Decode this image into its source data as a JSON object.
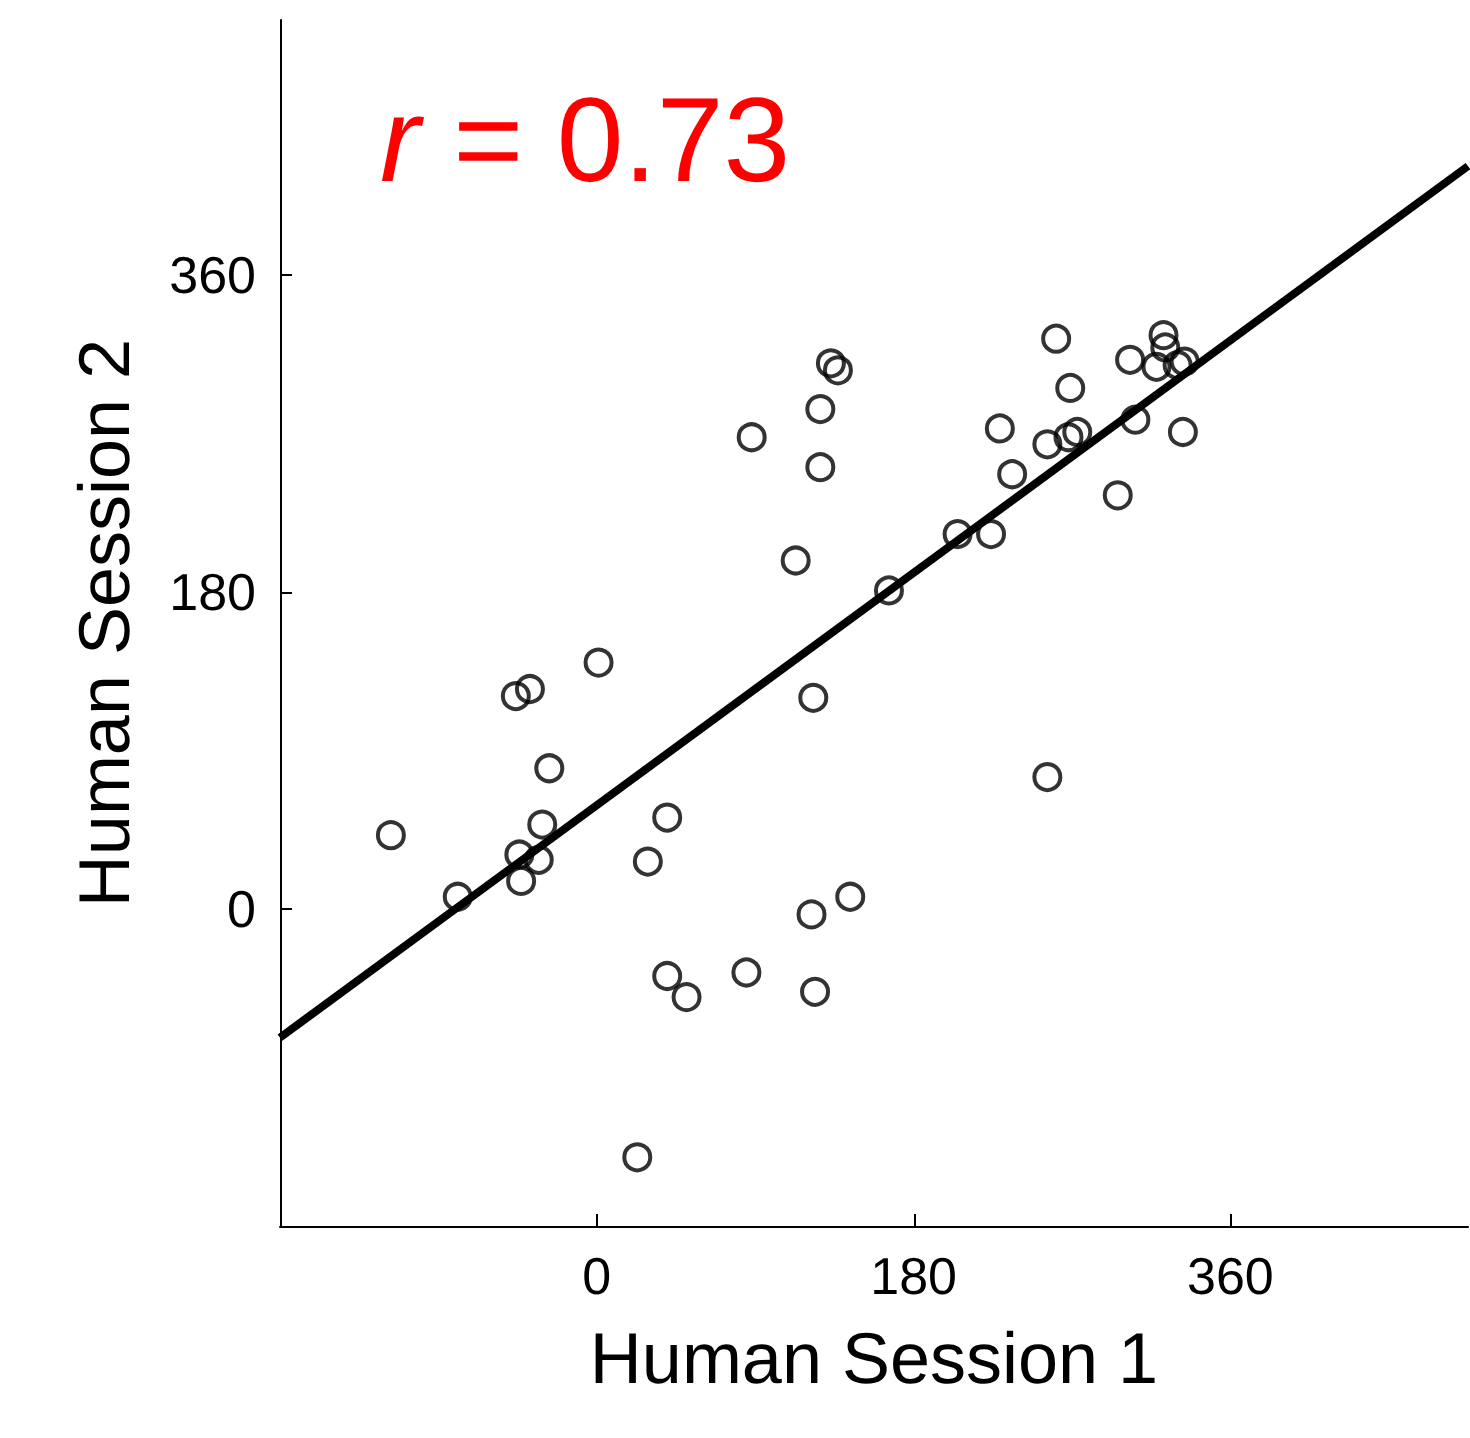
{
  "chart_data": {
    "type": "scatter",
    "xlabel": "Human Session 1",
    "ylabel": "Human Session 2",
    "annotations": [
      "r = 0.73"
    ],
    "xlim": [
      -180,
      495
    ],
    "ylim": [
      -180,
      505
    ],
    "xticks": [
      0,
      180,
      360
    ],
    "yticks": [
      0,
      180,
      360
    ],
    "grid": false,
    "marker": "circle",
    "series": [
      {
        "color": "#000000",
        "x": [
          -117,
          -79,
          -46,
          -38,
          -27,
          -31,
          -44,
          -33,
          -43,
          1,
          40,
          29,
          40,
          51,
          23,
          85,
          88,
          113,
          123,
          127,
          127,
          133,
          137,
          122,
          124,
          144,
          166,
          205,
          224,
          229,
          236,
          256,
          256,
          261,
          268,
          269,
          273,
          296,
          303,
          306,
          322,
          323,
          318,
          330,
          334,
          333
        ],
        "values": [
          42,
          7,
          121,
          125,
          80,
          48,
          31,
          28,
          16,
          140,
          52,
          27,
          -38,
          -50,
          -141,
          -36,
          268,
          198,
          120,
          251,
          284,
          310,
          306,
          -3,
          -47,
          7,
          181,
          213,
          213,
          273,
          247,
          75,
          264,
          324,
          268,
          296,
          271,
          235,
          312,
          278,
          326,
          319,
          308,
          309,
          311,
          271
        ]
      },
      {
        "type": "line",
        "color": "#000000",
        "marker": "none",
        "x": [
          -180,
          495
        ],
        "values": [
          -73,
          422
        ]
      }
    ]
  }
}
